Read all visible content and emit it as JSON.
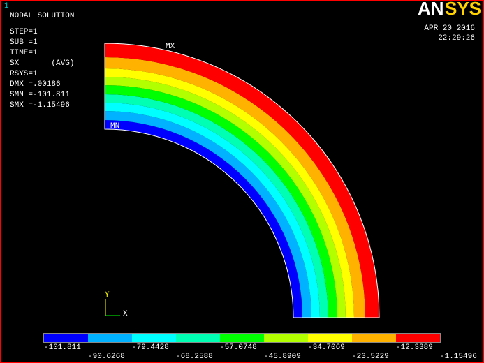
{
  "window_number": "1",
  "header": {
    "lines": [
      "NODAL SOLUTION",
      "STEP=1",
      "SUB =1",
      "TIME=1",
      "SX       (AVG)",
      "RSYS=1",
      "DMX =.00186",
      "SMN =-101.811",
      "SMX =-1.15496"
    ]
  },
  "logo": {
    "part1": "AN",
    "part2": "SYS"
  },
  "timestamp": {
    "date": "APR 20 2016",
    "time": "22:29:26"
  },
  "plot": {
    "max_label": "MX",
    "min_label": "MN",
    "triad_y": "Y",
    "triad_x": "X"
  },
  "legend": {
    "colors": [
      "#0000ff",
      "#00b2ff",
      "#00ffff",
      "#00ffb2",
      "#00ff00",
      "#b2ff00",
      "#ffff00",
      "#ffb200",
      "#ff0000"
    ],
    "labels": [
      "-101.811",
      "-90.6268",
      "-79.4428",
      "-68.2588",
      "-57.0748",
      "-45.8909",
      "-34.7069",
      "-23.5229",
      "-12.3389",
      "-1.15496"
    ]
  }
}
